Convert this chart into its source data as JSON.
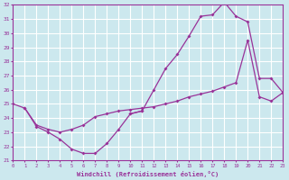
{
  "xlabel": "Windchill (Refroidissement éolien,°C)",
  "line1_x": [
    0,
    1,
    2,
    3,
    4,
    5,
    6,
    7,
    8,
    9,
    10,
    11
  ],
  "line1_y": [
    25.0,
    24.7,
    23.4,
    23.0,
    22.5,
    21.8,
    21.5,
    21.5,
    22.2,
    23.2,
    24.3,
    24.5
  ],
  "line2_x": [
    10,
    11,
    12,
    13,
    14,
    15,
    16,
    17,
    18,
    19,
    20,
    21,
    22,
    23
  ],
  "line2_y": [
    24.3,
    24.5,
    26.0,
    27.5,
    28.5,
    29.8,
    31.2,
    31.3,
    32.2,
    31.2,
    30.8,
    26.8,
    26.8,
    25.8
  ],
  "line3_x": [
    1,
    2,
    3,
    4,
    5,
    6,
    7,
    8,
    9,
    10,
    11,
    12,
    13,
    14,
    15,
    16,
    17,
    18,
    19,
    20,
    21,
    22,
    23
  ],
  "line3_y": [
    24.7,
    23.5,
    23.2,
    23.0,
    23.2,
    23.5,
    24.1,
    24.3,
    24.5,
    24.6,
    24.7,
    24.8,
    25.0,
    25.2,
    25.5,
    25.7,
    25.9,
    26.2,
    26.5,
    29.5,
    25.5,
    25.2,
    25.8
  ],
  "line_color": "#993399",
  "bg_color": "#cce8ee",
  "grid_color": "#ffffff",
  "ylim": [
    21,
    32
  ],
  "xlim": [
    0,
    23
  ],
  "yticks": [
    21,
    22,
    23,
    24,
    25,
    26,
    27,
    28,
    29,
    30,
    31,
    32
  ],
  "xticks": [
    0,
    1,
    2,
    3,
    4,
    5,
    6,
    7,
    8,
    9,
    10,
    11,
    12,
    13,
    14,
    15,
    16,
    17,
    18,
    19,
    20,
    21,
    22,
    23
  ]
}
